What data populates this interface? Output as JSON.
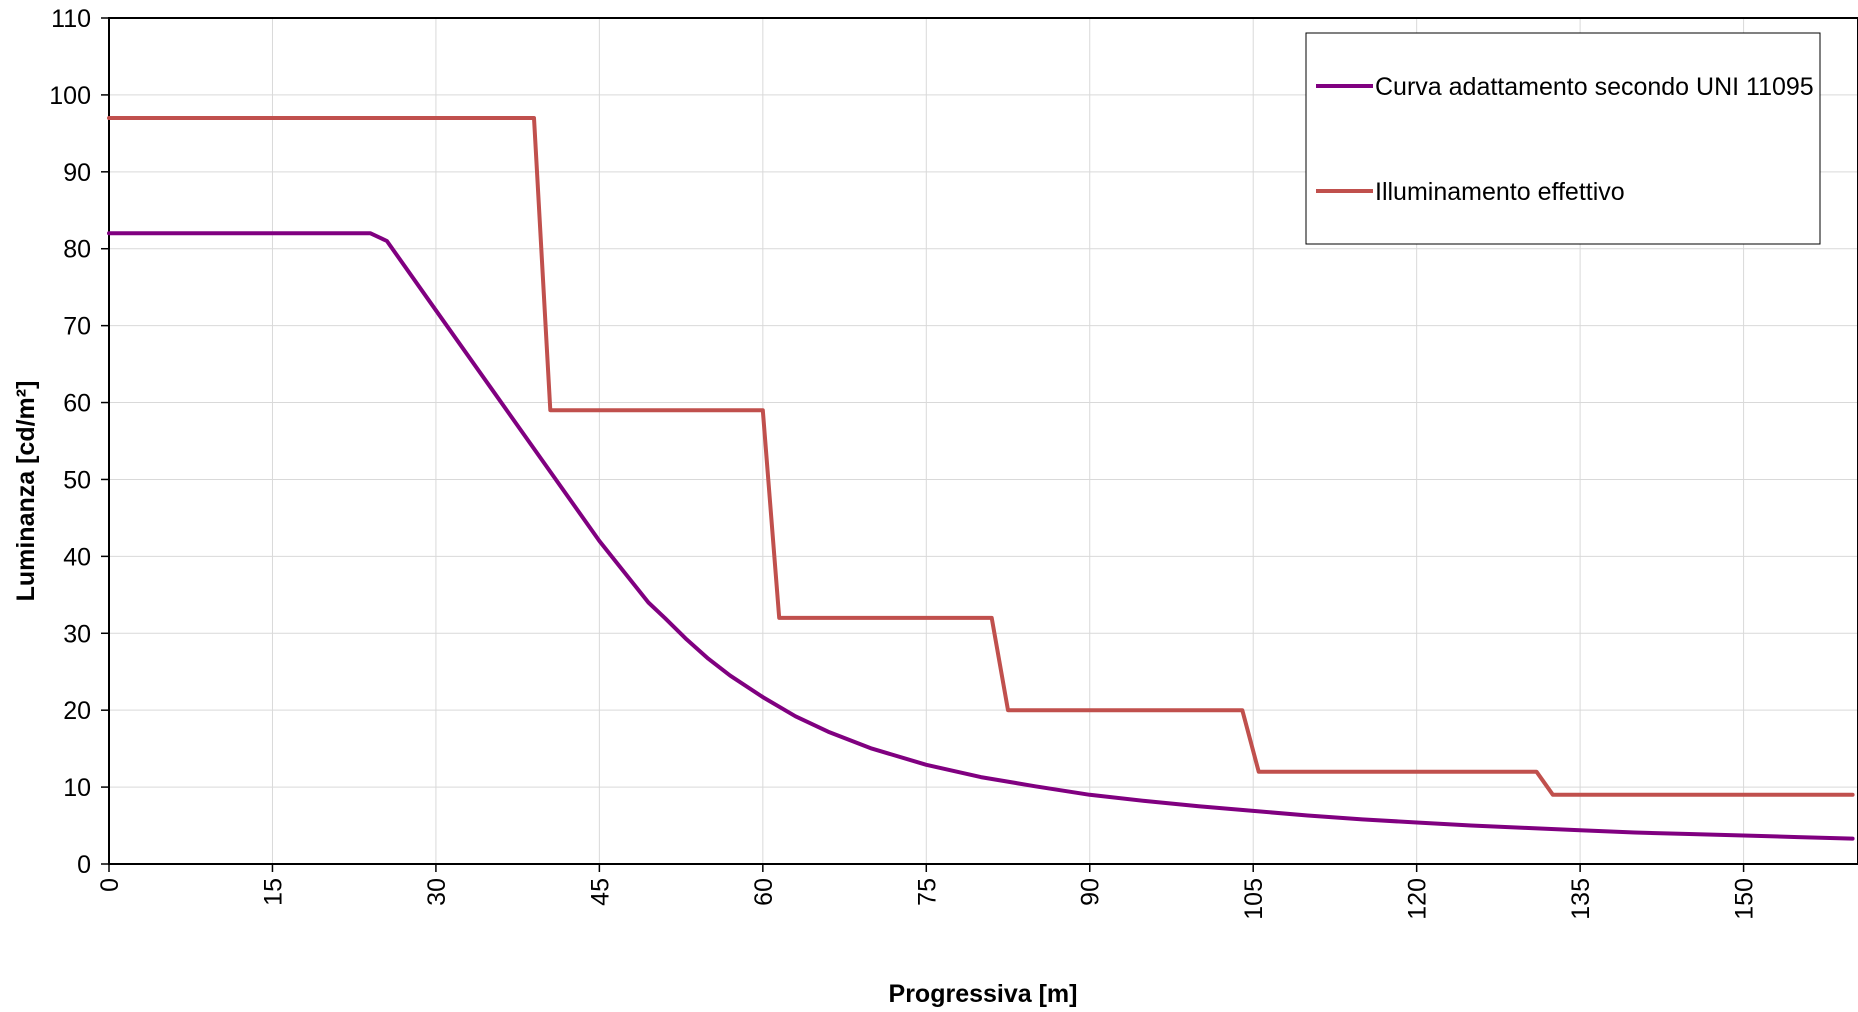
{
  "chart_data": {
    "type": "line",
    "title": "",
    "xlabel": "Progressiva [m]",
    "ylabel": "Luminanza [cd/m²]",
    "xlim": [
      0,
      160.5
    ],
    "ylim": [
      0,
      110
    ],
    "x_ticks": [
      0,
      15,
      30,
      45,
      60,
      75,
      90,
      105,
      120,
      135,
      150
    ],
    "y_ticks": [
      0,
      10,
      20,
      30,
      40,
      50,
      60,
      70,
      80,
      90,
      100,
      110
    ],
    "grid": true,
    "legend_position": "top-right",
    "series": [
      {
        "name": "Curva adattamento secondo UNI 11095",
        "color": "#800080",
        "x": [
          0,
          24,
          25.5,
          30,
          35,
          40,
          45,
          49.5,
          51,
          53,
          55,
          57,
          60,
          63,
          66,
          70,
          75,
          80,
          85,
          90,
          95,
          100,
          105,
          110,
          115,
          120,
          125,
          130,
          135,
          140,
          145,
          150,
          155,
          160
        ],
        "y": [
          82,
          82,
          81,
          72,
          62,
          52,
          42,
          34,
          32,
          29.2,
          26.7,
          24.5,
          21.7,
          19.2,
          17.2,
          15,
          12.9,
          11.3,
          10.1,
          9,
          8.2,
          7.5,
          6.9,
          6.3,
          5.8,
          5.4,
          5,
          4.7,
          4.4,
          4.1,
          3.9,
          3.7,
          3.5,
          3.3
        ]
      },
      {
        "name": "Illuminamento effettivo",
        "color": "#C0504D",
        "x": [
          0,
          39,
          40.5,
          60,
          61.5,
          81,
          82.5,
          104,
          105.5,
          131,
          132.5,
          160
        ],
        "y": [
          97,
          97,
          59,
          59,
          32,
          32,
          20,
          20,
          12,
          12,
          9,
          9
        ]
      }
    ]
  }
}
